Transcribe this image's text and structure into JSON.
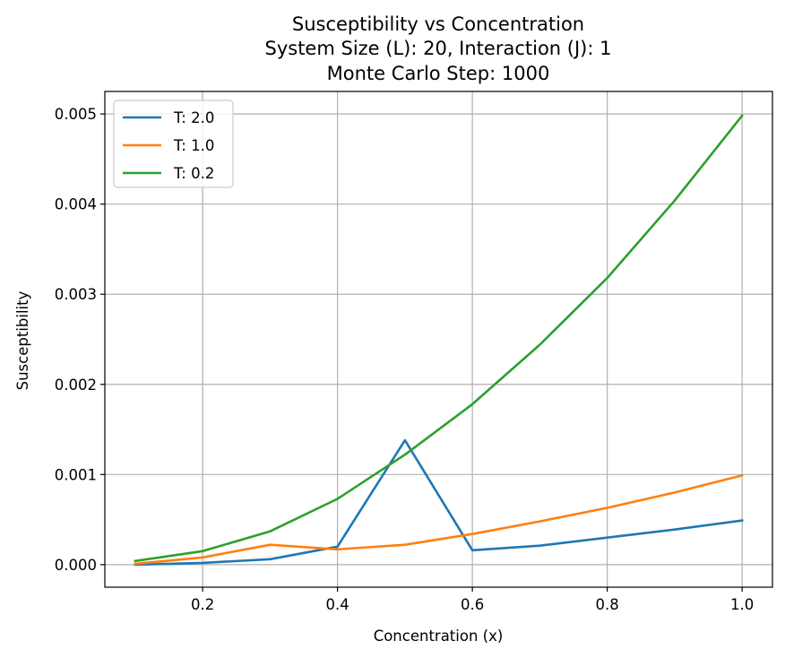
{
  "chart_data": {
    "type": "line",
    "title_lines": [
      "Susceptibility vs Concentration",
      "System Size (L): 20, Interaction (J): 1",
      "Monte Carlo Step: 1000"
    ],
    "xlabel": "Concentration (x)",
    "ylabel": "Susceptibility",
    "xlim": [
      0.055,
      1.045
    ],
    "ylim": [
      -0.00025,
      0.00525
    ],
    "xticks": [
      0.2,
      0.4,
      0.6,
      0.8,
      1.0
    ],
    "xtick_labels": [
      "0.2",
      "0.4",
      "0.6",
      "0.8",
      "1.0"
    ],
    "yticks": [
      0.0,
      0.001,
      0.002,
      0.003,
      0.004,
      0.005
    ],
    "ytick_labels": [
      "0.000",
      "0.001",
      "0.002",
      "0.003",
      "0.004",
      "0.005"
    ],
    "grid": true,
    "legend_position": "top-left",
    "x": [
      0.1,
      0.2,
      0.3,
      0.4,
      0.5,
      0.6,
      0.7,
      0.8,
      0.9,
      1.0
    ],
    "series": [
      {
        "name": "T: 2.0",
        "color": "#1f77b4",
        "values": [
          0.0,
          2e-05,
          6e-05,
          0.0002,
          0.00138,
          0.00016,
          0.00021,
          0.0003,
          0.00039,
          0.00049
        ]
      },
      {
        "name": "T: 1.0",
        "color": "#ff7f0e",
        "values": [
          1e-05,
          8e-05,
          0.00022,
          0.00017,
          0.00022,
          0.00034,
          0.00048,
          0.00063,
          0.0008,
          0.00099
        ]
      },
      {
        "name": "T: 0.2",
        "color": "#2ca02c",
        "values": [
          4e-05,
          0.00015,
          0.00037,
          0.00073,
          0.00122,
          0.00178,
          0.00244,
          0.00318,
          0.00404,
          0.00498
        ]
      }
    ]
  }
}
